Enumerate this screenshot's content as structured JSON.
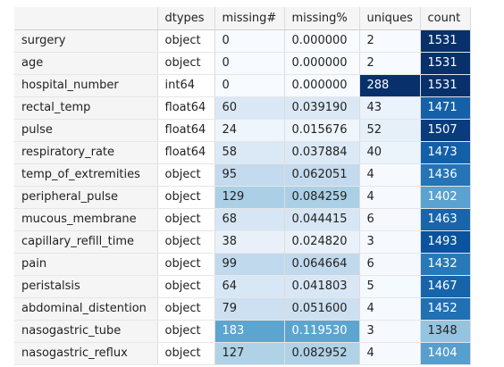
{
  "columns": [
    "",
    "dtypes",
    "missing#",
    "missing%",
    "uniques",
    "count"
  ],
  "rows": [
    [
      "surgery",
      "object",
      "0",
      "0.000000",
      "2",
      "1531"
    ],
    [
      "age",
      "object",
      "0",
      "0.000000",
      "2",
      "1531"
    ],
    [
      "hospital_number",
      "int64",
      "0",
      "0.000000",
      "288",
      "1531"
    ],
    [
      "rectal_temp",
      "float64",
      "60",
      "0.039190",
      "43",
      "1471"
    ],
    [
      "pulse",
      "float64",
      "24",
      "0.015676",
      "52",
      "1507"
    ],
    [
      "respiratory_rate",
      "float64",
      "58",
      "0.037884",
      "40",
      "1473"
    ],
    [
      "temp_of_extremities",
      "object",
      "95",
      "0.062051",
      "4",
      "1436"
    ],
    [
      "peripheral_pulse",
      "object",
      "129",
      "0.084259",
      "4",
      "1402"
    ],
    [
      "mucous_membrane",
      "object",
      "68",
      "0.044415",
      "6",
      "1463"
    ],
    [
      "capillary_refill_time",
      "object",
      "38",
      "0.024820",
      "3",
      "1493"
    ],
    [
      "pain",
      "object",
      "99",
      "0.064664",
      "6",
      "1432"
    ],
    [
      "peristalsis",
      "object",
      "64",
      "0.041803",
      "5",
      "1467"
    ],
    [
      "abdominal_distention",
      "object",
      "79",
      "0.051600",
      "4",
      "1452"
    ],
    [
      "nasogastric_tube",
      "object",
      "183",
      "0.119530",
      "3",
      "1348"
    ],
    [
      "nasogastric_reflux",
      "object",
      "127",
      "0.082952",
      "4",
      "1404"
    ]
  ],
  "colors": {
    "missing_num": [
      "#f7fbff",
      "#f7fbff",
      "#f7fbff",
      "#dae8f6",
      "#eef5fc",
      "#dbe9f6",
      "#c4daee",
      "#abd0e6",
      "#d6e6f4",
      "#e8f1fa",
      "#c1d9ed",
      "#d8e7f5",
      "#cde0f1",
      "#5da5d1",
      "#b0d2e7"
    ],
    "missing_pct": [
      "#f7fbff",
      "#f7fbff",
      "#f7fbff",
      "#dae8f6",
      "#eef5fc",
      "#dbe9f6",
      "#c4daee",
      "#abd0e6",
      "#d6e6f4",
      "#e8f1fa",
      "#c1d9ed",
      "#d8e7f5",
      "#cde0f1",
      "#5da5d1",
      "#b0d2e7"
    ],
    "uniques": [
      "#f7fbff",
      "#f7fbff",
      "#08306b",
      "#eaf2fb",
      "#e6f0f9",
      "#ebf3fb",
      "#f6faff",
      "#f6faff",
      "#f5f9fe",
      "#f6faff",
      "#f5f9fe",
      "#f5fafe",
      "#f6faff",
      "#f6faff",
      "#f6faff"
    ],
    "count": [
      "#08306b",
      "#08306b",
      "#08306b",
      "#1561a9",
      "#083c7d",
      "#1460a8",
      "#2474b7",
      "#5aa2cf",
      "#1865ac",
      "#0a539e",
      "#2979b9",
      "#1764ab",
      "#2070b4",
      "#94c4df",
      "#579fce"
    ],
    "dark_text": "#222222",
    "light_text": "#ffffff"
  }
}
